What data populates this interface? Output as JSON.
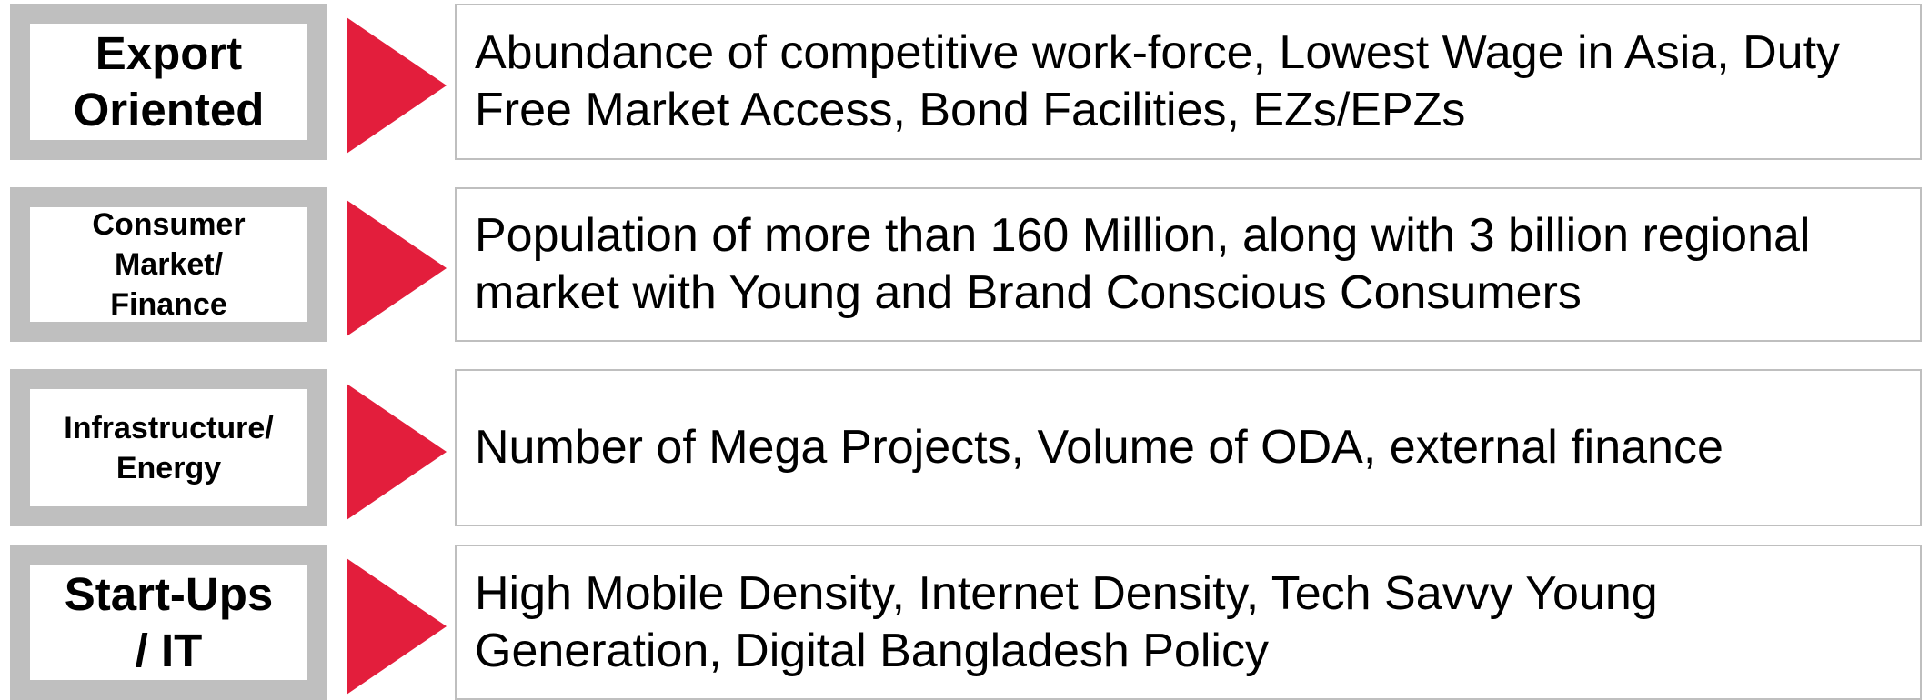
{
  "rows": [
    {
      "label": [
        "Export",
        "Oriented"
      ],
      "size": "large",
      "description": [
        "Abundance of competitive work-force, Lowest Wage in Asia, Duty",
        "Free Market Access, Bond Facilities, EZs/EPZs"
      ]
    },
    {
      "label": [
        "Consumer",
        "Market/",
        "Finance"
      ],
      "size": "small",
      "description": [
        "Population of more than 160 Million, along with 3 billion regional",
        "market with Young and Brand Conscious Consumers"
      ]
    },
    {
      "label": [
        "Infrastructure/",
        "Energy"
      ],
      "size": "small",
      "description": [
        "Number of Mega Projects, Volume of ODA, external finance"
      ]
    },
    {
      "label": [
        "Start-Ups",
        "/ IT"
      ],
      "size": "large",
      "description": [
        "High Mobile Density, Internet Density, Tech Savvy Young",
        "Generation, Digital Bangladesh Policy"
      ]
    }
  ]
}
